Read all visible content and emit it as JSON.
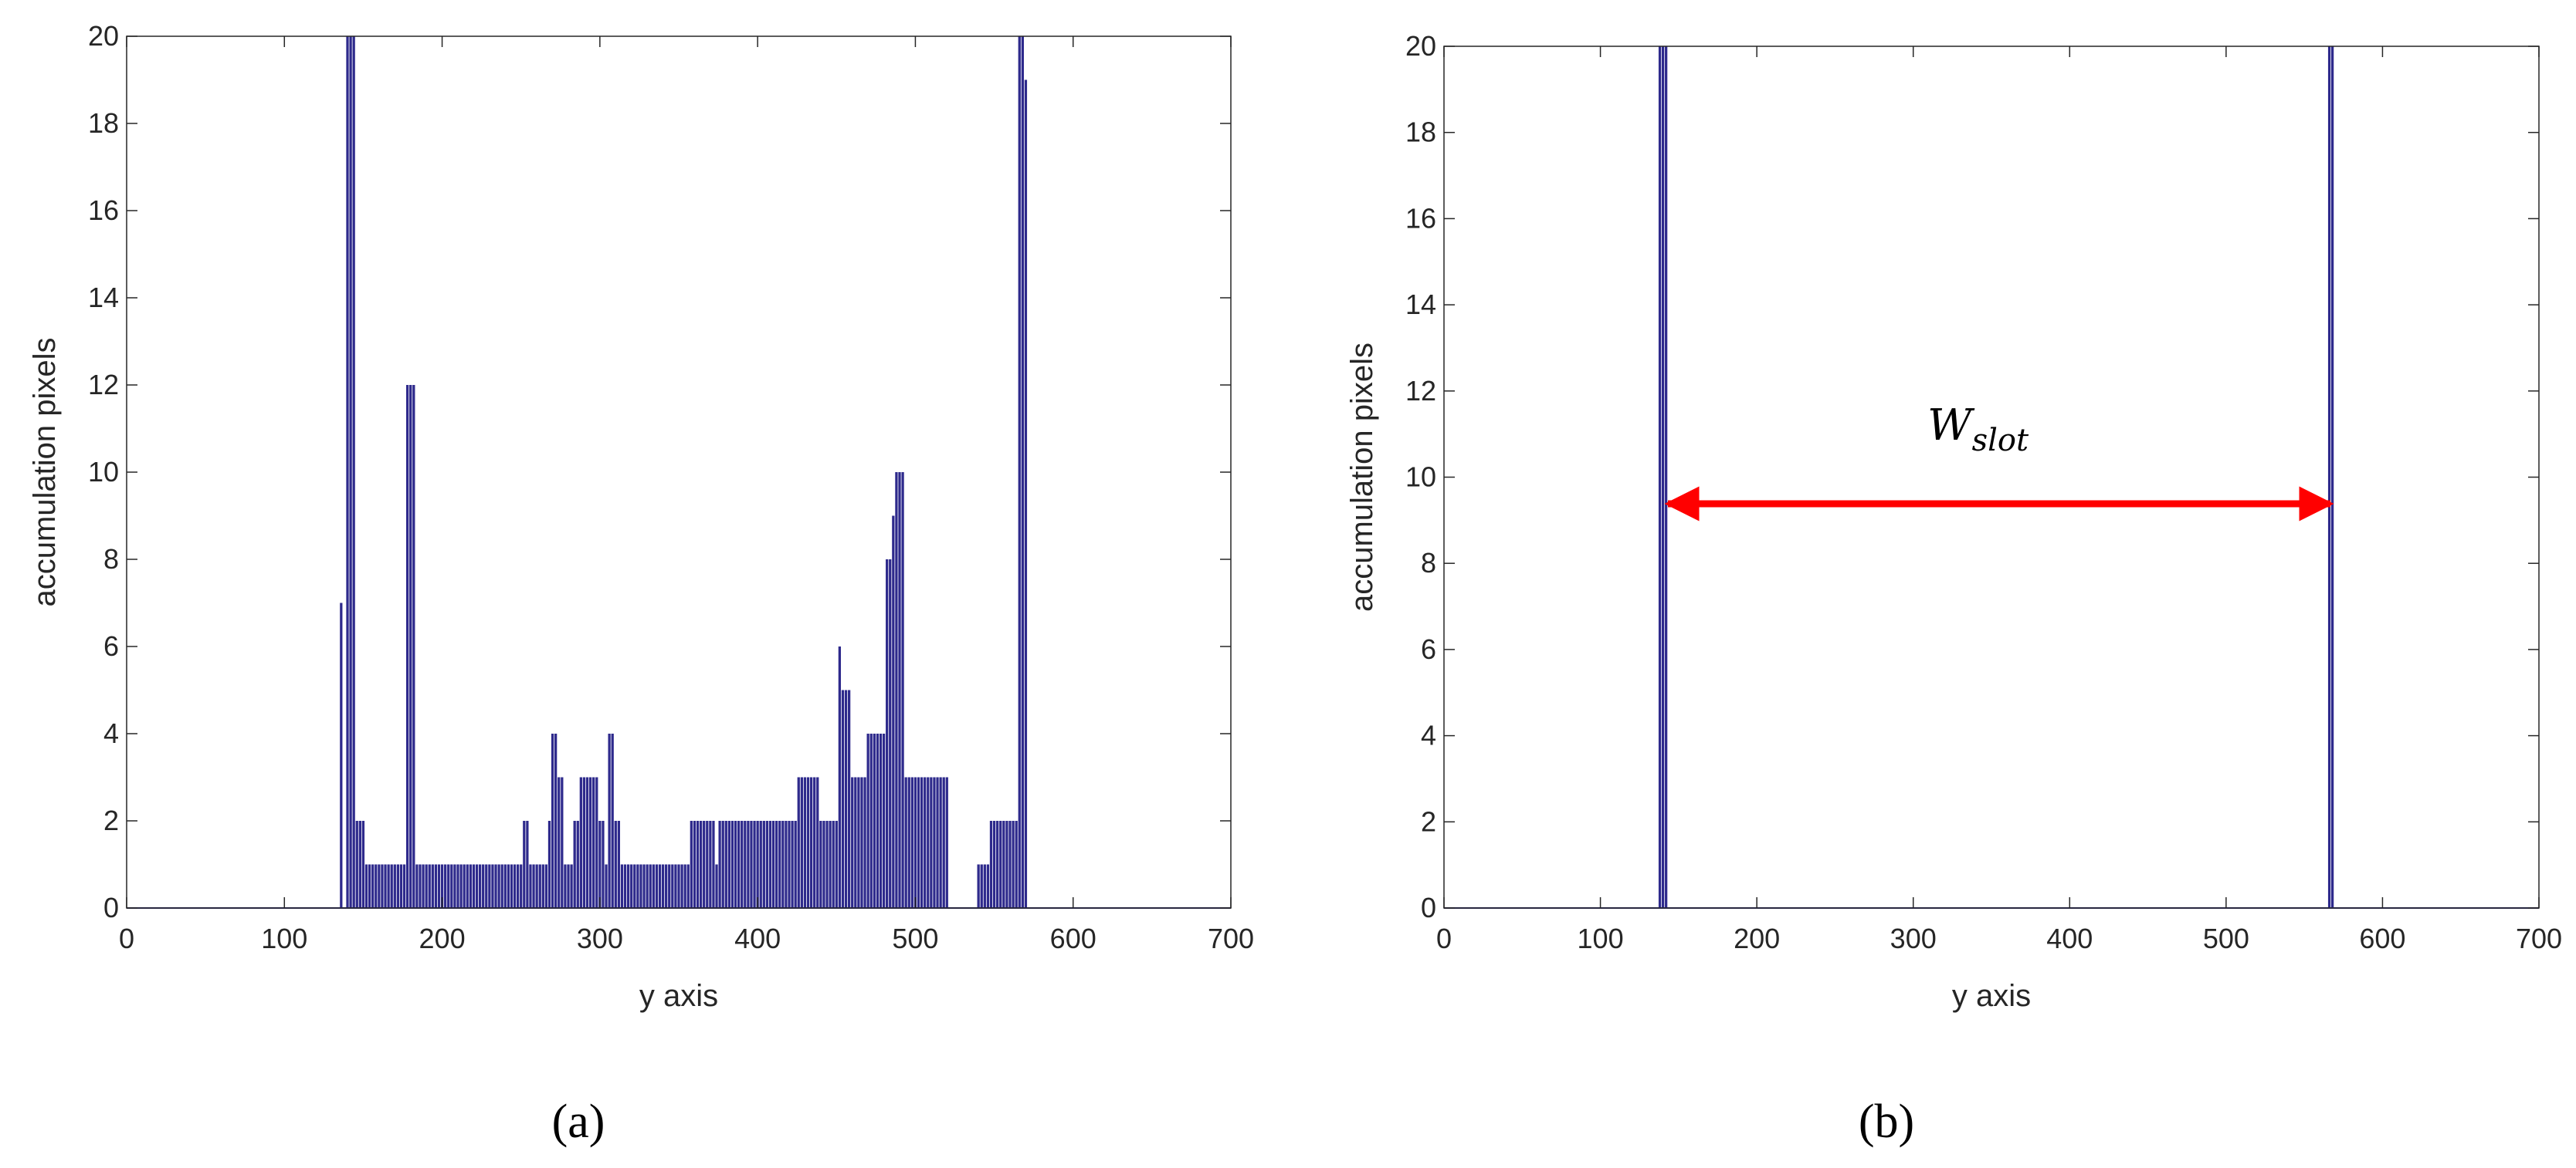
{
  "chart_data": [
    {
      "type": "bar",
      "panel_label": "(a)",
      "xlabel": "y axis",
      "ylabel": "accumulation pixels",
      "color": "#2e2a8c",
      "xlim": [
        0,
        700
      ],
      "ylim": [
        0,
        20
      ],
      "xticks": [
        0,
        100,
        200,
        300,
        400,
        500,
        600,
        700
      ],
      "yticks": [
        0,
        2,
        4,
        6,
        8,
        10,
        12,
        14,
        16,
        18,
        20
      ],
      "x": [
        136,
        138,
        140,
        142,
        144,
        146,
        148,
        150,
        152,
        154,
        156,
        158,
        160,
        162,
        164,
        166,
        168,
        170,
        172,
        174,
        176,
        178,
        180,
        182,
        184,
        186,
        188,
        190,
        192,
        194,
        196,
        198,
        200,
        202,
        204,
        206,
        208,
        210,
        212,
        214,
        216,
        218,
        220,
        222,
        224,
        226,
        228,
        230,
        232,
        234,
        236,
        238,
        240,
        242,
        244,
        246,
        248,
        250,
        252,
        254,
        256,
        258,
        260,
        262,
        264,
        266,
        268,
        270,
        272,
        274,
        276,
        278,
        280,
        282,
        284,
        286,
        288,
        290,
        292,
        294,
        296,
        298,
        300,
        302,
        304,
        306,
        308,
        310,
        312,
        314,
        316,
        318,
        320,
        322,
        324,
        326,
        328,
        330,
        332,
        334,
        336,
        338,
        340,
        342,
        344,
        346,
        348,
        350,
        352,
        354,
        356,
        358,
        360,
        362,
        364,
        366,
        368,
        370,
        372,
        374,
        376,
        378,
        380,
        382,
        384,
        386,
        388,
        390,
        392,
        394,
        396,
        398,
        400,
        402,
        404,
        406,
        408,
        410,
        412,
        414,
        416,
        418,
        420,
        422,
        424,
        426,
        428,
        430,
        432,
        434,
        436,
        438,
        440,
        442,
        444,
        446,
        448,
        450,
        452,
        454,
        456,
        458,
        460,
        462,
        464,
        466,
        468,
        470,
        472,
        474,
        476,
        478,
        480,
        482,
        484,
        486,
        488,
        490,
        492,
        494,
        496,
        498,
        500,
        502,
        504,
        506,
        508,
        510,
        512,
        514,
        516,
        518,
        520,
        522,
        524,
        526,
        528,
        530,
        532,
        534,
        536,
        538,
        540,
        542,
        544,
        546,
        548,
        550,
        552,
        554,
        556,
        558,
        560,
        562,
        564,
        566,
        568,
        570
      ],
      "values": [
        7,
        0,
        20,
        20,
        20,
        2,
        2,
        2,
        1,
        1,
        1,
        1,
        1,
        1,
        1,
        1,
        1,
        1,
        1,
        1,
        1,
        12,
        12,
        12,
        1,
        1,
        1,
        1,
        1,
        1,
        1,
        1,
        1,
        1,
        1,
        1,
        1,
        1,
        1,
        1,
        1,
        1,
        1,
        1,
        1,
        1,
        1,
        1,
        1,
        1,
        1,
        1,
        1,
        1,
        1,
        1,
        1,
        1,
        2,
        2,
        1,
        1,
        1,
        1,
        1,
        1,
        2,
        4,
        4,
        3,
        3,
        1,
        1,
        1,
        2,
        2,
        3,
        3,
        3,
        3,
        3,
        3,
        2,
        2,
        1,
        4,
        4,
        2,
        2,
        1,
        1,
        1,
        1,
        1,
        1,
        1,
        1,
        1,
        1,
        1,
        1,
        1,
        1,
        1,
        1,
        1,
        1,
        1,
        1,
        1,
        1,
        2,
        2,
        2,
        2,
        2,
        2,
        2,
        2,
        1,
        2,
        2,
        2,
        2,
        2,
        2,
        2,
        2,
        2,
        2,
        2,
        2,
        2,
        2,
        2,
        2,
        2,
        2,
        2,
        2,
        2,
        2,
        2,
        2,
        2,
        3,
        3,
        3,
        3,
        3,
        3,
        3,
        2,
        2,
        2,
        2,
        2,
        2,
        6,
        5,
        5,
        5,
        3,
        3,
        3,
        3,
        3,
        4,
        4,
        4,
        4,
        4,
        4,
        8,
        8,
        9,
        10,
        10,
        10,
        3,
        3,
        3,
        3,
        3,
        3,
        3,
        3,
        3,
        3,
        3,
        3,
        3,
        3,
        0,
        0,
        0,
        0,
        0,
        0,
        0,
        0,
        0,
        1,
        1,
        1,
        1,
        2,
        2,
        2,
        2,
        2,
        2,
        2,
        2,
        2,
        20,
        20,
        19
      ]
    },
    {
      "type": "bar",
      "panel_label": "(b)",
      "xlabel": "y axis",
      "ylabel": "accumulation pixels",
      "color": "#2e2a8c",
      "xlim": [
        0,
        700
      ],
      "ylim": [
        0,
        20
      ],
      "xticks": [
        0,
        100,
        200,
        300,
        400,
        500,
        600,
        700
      ],
      "yticks": [
        0,
        2,
        4,
        6,
        8,
        10,
        12,
        14,
        16,
        18,
        20
      ],
      "x": [
        138,
        140,
        142,
        566,
        568
      ],
      "values": [
        20,
        20,
        20,
        20,
        20
      ],
      "annotation": {
        "text": "W",
        "subscript": "slot"
      }
    }
  ]
}
